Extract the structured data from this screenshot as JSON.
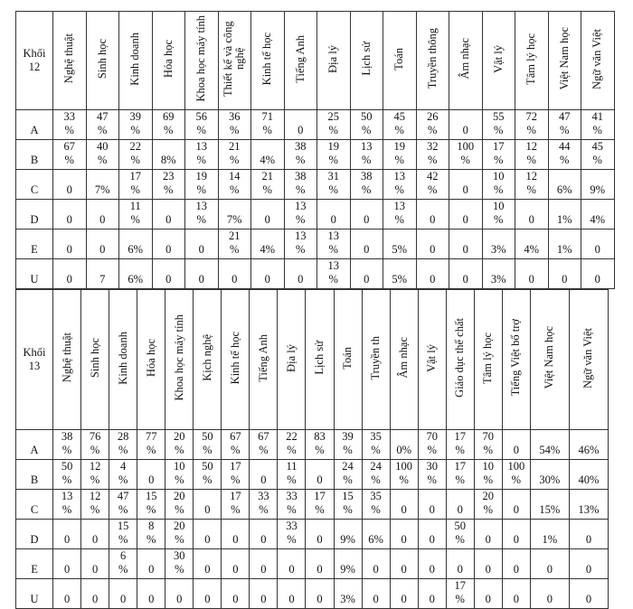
{
  "tables": [
    {
      "corner": "Khối 12",
      "headers": [
        "Nghệ thuật",
        "Sinh học",
        "Kinh doanh",
        "Hóa học",
        "Khoa học máy tính",
        "Thiết kế và công nghệ",
        "Kinh tế học",
        "Tiếng Anh",
        "Địa lý",
        "Lịch sử",
        "Toán",
        "Truyền thông",
        "Âm nhạc",
        "Vật lý",
        "Tâm lý học",
        "Việt Nam học",
        "Ngữ văn Việt"
      ],
      "rows": [
        {
          "label": "A",
          "cells": [
            "33 %",
            "47 %",
            "39 %",
            "69 %",
            "56 %",
            "36 %",
            "71 %",
            "0",
            "25 %",
            "50 %",
            "45 %",
            "26 %",
            "0",
            "55 %",
            "72 %",
            "47 %",
            "41 %"
          ]
        },
        {
          "label": "B",
          "cells": [
            "67 %",
            "40 %",
            "22 %",
            "8%",
            "13 %",
            "21 %",
            "4%",
            "38 %",
            "19 %",
            "13 %",
            "19 %",
            "32 %",
            "100 %",
            "17 %",
            "12 %",
            "44 %",
            "45 %"
          ]
        },
        {
          "label": "C",
          "cells": [
            "0",
            "7%",
            "17 %",
            "23 %",
            "19 %",
            "14 %",
            "21 %",
            "38 %",
            "31 %",
            "38 %",
            "13 %",
            "42 %",
            "0",
            "10 %",
            "12 %",
            "6%",
            "9%"
          ]
        },
        {
          "label": "D",
          "cells": [
            "0",
            "0",
            "11 %",
            "0",
            "13 %",
            "7%",
            "0",
            "13 %",
            "0",
            "0",
            "13 %",
            "0",
            "0",
            "10 %",
            "0",
            "1%",
            "4%"
          ]
        },
        {
          "label": "E",
          "cells": [
            "0",
            "0",
            "6%",
            "0",
            "0",
            "21 %",
            "4%",
            "13 %",
            "13 %",
            "0",
            "5%",
            "0",
            "0",
            "3%",
            "4%",
            "1%",
            "0"
          ]
        },
        {
          "label": "U",
          "cells": [
            "0",
            "7",
            "6%",
            "0",
            "0",
            "0",
            "0",
            "0",
            "13 %",
            "0",
            "5%",
            "0",
            "0",
            "3%",
            "0",
            "0",
            "0"
          ]
        }
      ]
    },
    {
      "corner": "Khối 13",
      "headers": [
        "Nghệ thuật",
        "Sinh học",
        "Kinh doanh",
        "Hóa học",
        "Khoa học máy tính",
        "Kịch nghệ",
        "Kinh tế học",
        "Tiếng Anh",
        "Địa lý",
        "Lịch sử",
        "Toán",
        "Truyền th",
        "Âm nhạc",
        "Vật lý",
        "Giáo dục thể chất",
        "Tâm lý học",
        "Tiếng Việt bổ trợ",
        "Việt Nam học",
        "Ngữ văn Việt"
      ],
      "rows": [
        {
          "label": "A",
          "cells": [
            "38 %",
            "76 %",
            "28 %",
            "77 %",
            "20 %",
            "50 %",
            "67 %",
            "67 %",
            "22 %",
            "83 %",
            "39 %",
            "35 %",
            "0%",
            "70 %",
            "17 %",
            "70 %",
            "0",
            "54%",
            "46%"
          ]
        },
        {
          "label": "B",
          "cells": [
            "50 %",
            "12 %",
            "4 %",
            "0",
            "10 %",
            "50 %",
            "17 %",
            "0",
            "11 %",
            "0",
            "24 %",
            "24 %",
            "100 %",
            "30 %",
            "17 %",
            "10 %",
            "100 %",
            "30%",
            "40%"
          ]
        },
        {
          "label": "C",
          "cells": [
            "13 %",
            "12 %",
            "47 %",
            "15 %",
            "20 %",
            "0",
            "17 %",
            "33 %",
            "33 %",
            "17 %",
            "15 %",
            "35 %",
            "0",
            "0",
            "0",
            "20 %",
            "0",
            "15%",
            "13%"
          ]
        },
        {
          "label": "D",
          "cells": [
            "0",
            "0",
            "15 %",
            "8 %",
            "20 %",
            "0",
            "0",
            "0",
            "33 %",
            "0",
            "9%",
            "6%",
            "0",
            "0",
            "50 %",
            "0",
            "0",
            "1%",
            "0"
          ]
        },
        {
          "label": "E",
          "cells": [
            "0",
            "0",
            "6 %",
            "0",
            "30 %",
            "0",
            "0",
            "0",
            "0",
            "0",
            "9%",
            "0",
            "0",
            "0",
            "0",
            "0",
            "0",
            "0",
            "0"
          ]
        },
        {
          "label": "U",
          "cells": [
            "0",
            "0",
            "0",
            "0",
            "0",
            "0",
            "0",
            "0",
            "0",
            "0",
            "3%",
            "0",
            "0",
            "0",
            "17 %",
            "0",
            "0",
            "0",
            "0"
          ]
        }
      ]
    }
  ]
}
